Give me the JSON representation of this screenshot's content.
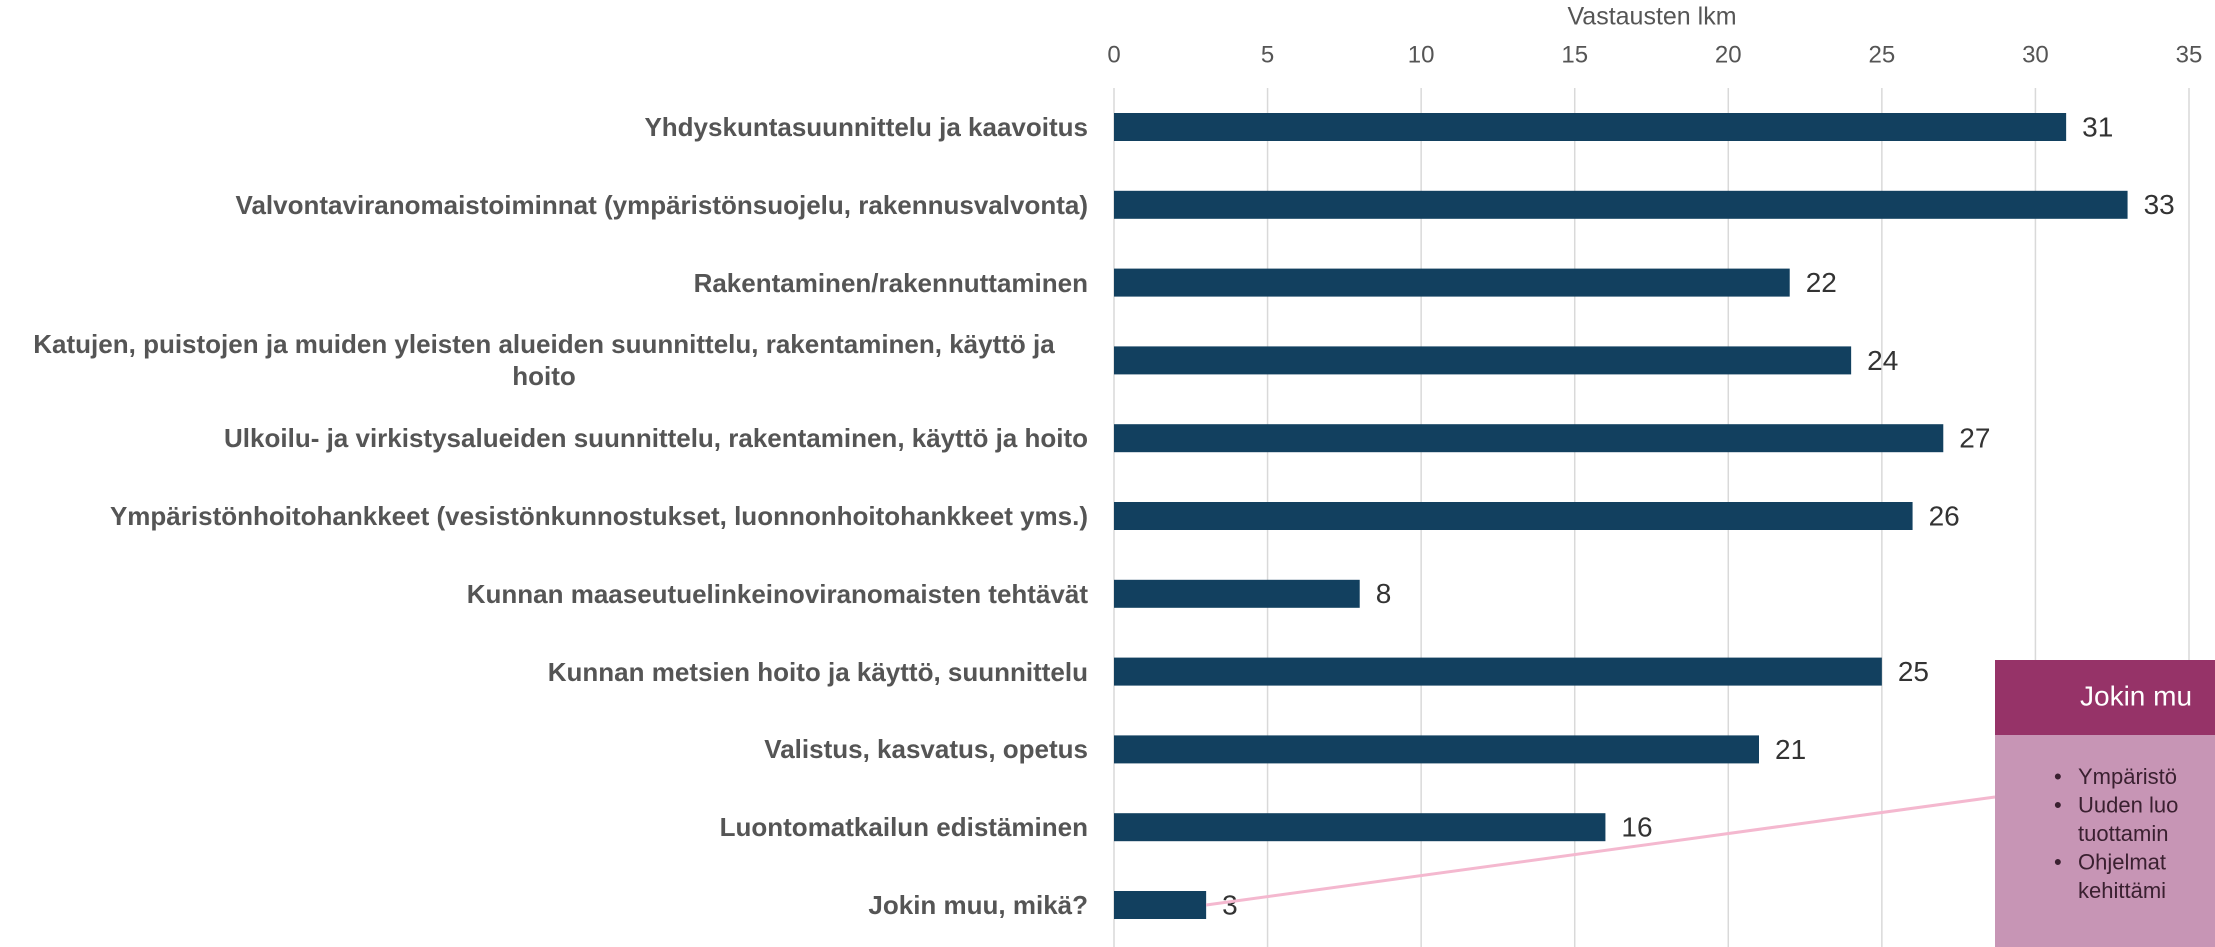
{
  "chart_data": {
    "type": "bar",
    "orientation": "horizontal",
    "x_axis_label": "Vastausten lkm",
    "categories": [
      "Yhdyskuntasuunnittelu ja kaavoitus",
      "Valvontaviranomaistoiminnat (ympäristönsuojelu, rakennusvalvonta)",
      "Rakentaminen/rakennuttaminen",
      "Katujen, puistojen ja muiden yleisten alueiden suunnittelu, rakentaminen, käyttö ja hoito",
      "Ulkoilu- ja virkistysalueiden suunnittelu, rakentaminen, käyttö ja hoito",
      "Ympäristönhoitohankkeet (vesistönkunnostukset, luonnonhoitohankkeet yms.)",
      "Kunnan maaseutuelinkeinoviranomaisten tehtävät",
      "Kunnan metsien hoito ja käyttö, suunnittelu",
      "Valistus, kasvatus, opetus",
      "Luontomatkailun edistäminen",
      "Jokin muu, mikä?"
    ],
    "values": [
      31,
      33,
      22,
      24,
      27,
      26,
      8,
      25,
      21,
      16,
      3
    ],
    "color": "#12405f",
    "xlim": [
      0,
      35
    ],
    "xticks": [
      0,
      5,
      10,
      15,
      20,
      25,
      30,
      35
    ],
    "grid": true
  },
  "callout": {
    "title": "Jokin mu",
    "items": [
      [
        "Ympäristö"
      ],
      [
        "Uuden luo",
        "tuottamin"
      ],
      [
        "Ohjelmat",
        "kehittämi"
      ]
    ]
  }
}
